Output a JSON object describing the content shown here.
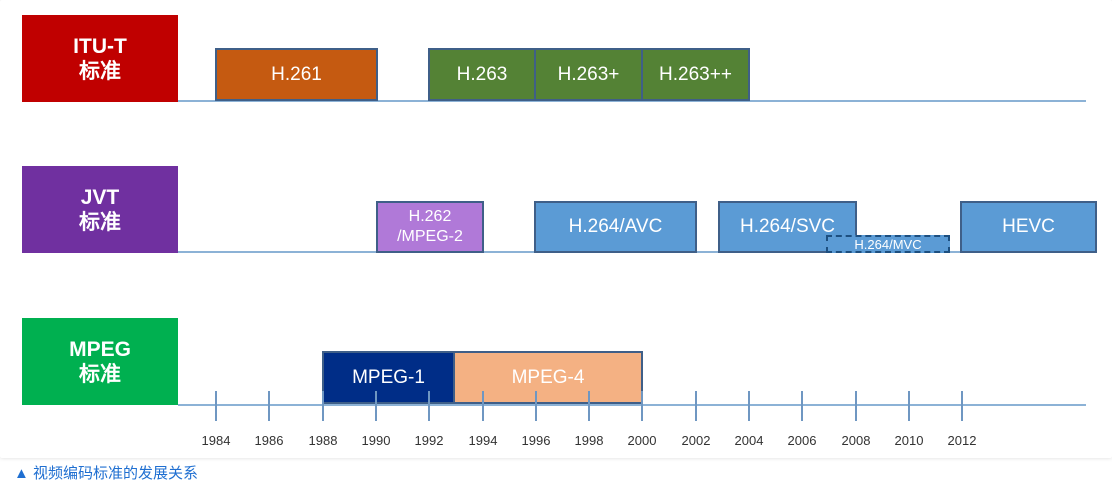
{
  "orgs": {
    "itu": {
      "line1": "ITU-T",
      "line2": "标准",
      "color": "#c00000"
    },
    "jvt": {
      "line1": "JVT",
      "line2": "标准",
      "color": "#7030a0"
    },
    "mpeg": {
      "line1": "MPEG",
      "line2": "标准",
      "color": "#00b050"
    }
  },
  "standards": {
    "h261": "H.261",
    "h263": "H.263",
    "h263p": "H.263+",
    "h263pp": "H.263++",
    "h262_l1": "H.262",
    "h262_l2": "/MPEG-2",
    "h264avc": "H.264/AVC",
    "h264svc": "H.264/SVC",
    "h264mvc": "H.264/MVC",
    "hevc": "HEVC",
    "mpeg1": "MPEG-1",
    "mpeg4": "MPEG-4"
  },
  "colors": {
    "h261": "#c55a11",
    "h263": "#548235",
    "h262": "#b079d8",
    "h264": "#5b9bd5",
    "mpeg1": "#002d87",
    "mpeg4": "#f4b183",
    "axis": "#8cb2d6"
  },
  "years": [
    "1984",
    "1986",
    "1988",
    "1990",
    "1992",
    "1994",
    "1996",
    "1998",
    "2000",
    "2002",
    "2004",
    "2006",
    "2008",
    "2010",
    "2012"
  ],
  "caption": "▲ 视频编码标准的发展关系"
}
